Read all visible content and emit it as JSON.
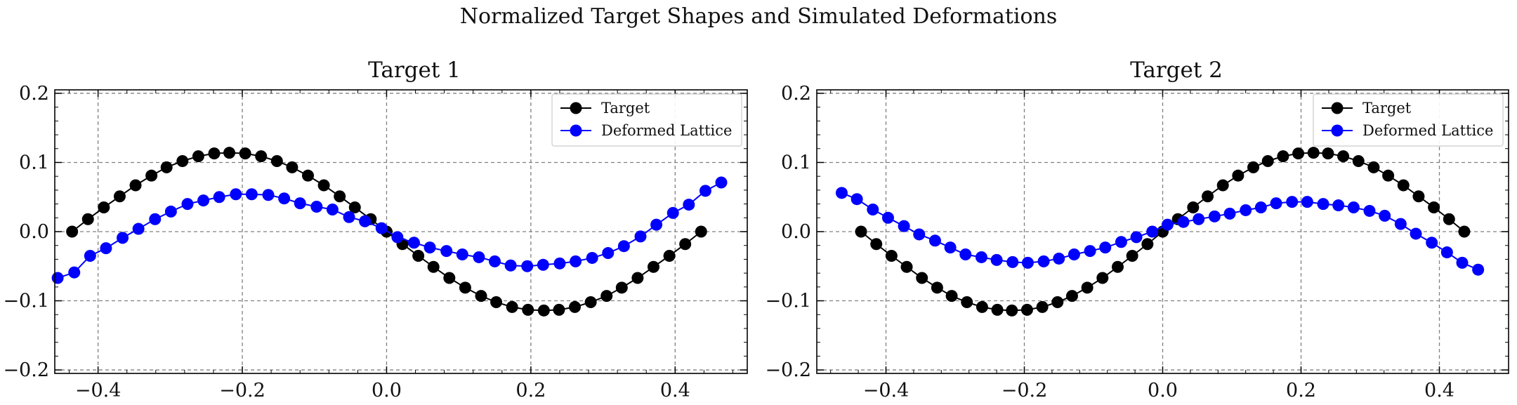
{
  "figure": {
    "suptitle": "Normalized Target Shapes and Simulated Deformations"
  },
  "colors": {
    "target": "#000000",
    "deformed": "#0000ff",
    "grid": "#808080",
    "frame": "#000000"
  },
  "chart_data": [
    {
      "type": "line",
      "title": "Target 1",
      "xlabel": "",
      "ylabel": "",
      "xlim": [
        -0.46,
        0.5
      ],
      "ylim": [
        -0.205,
        0.205
      ],
      "xticks": [
        -0.4,
        -0.2,
        0.0,
        0.2,
        0.4
      ],
      "xtick_labels": [
        "−0.4",
        "−0.2",
        "0.0",
        "0.2",
        "0.4"
      ],
      "yticks": [
        -0.2,
        -0.1,
        0.0,
        0.1,
        0.2
      ],
      "ytick_labels": [
        "−0.2",
        "−0.1",
        "0.0",
        "0.1",
        "0.2"
      ],
      "grid": true,
      "legend": "top-right",
      "series": [
        {
          "name": "Target",
          "color": "#000000",
          "marker": "circle",
          "x": [
            -0.436,
            -0.414,
            -0.392,
            -0.37,
            -0.348,
            -0.326,
            -0.305,
            -0.283,
            -0.261,
            -0.239,
            -0.218,
            -0.196,
            -0.174,
            -0.152,
            -0.131,
            -0.109,
            -0.087,
            -0.065,
            -0.044,
            -0.022,
            0.0,
            0.022,
            0.044,
            0.065,
            0.087,
            0.109,
            0.131,
            0.152,
            0.174,
            0.196,
            0.218,
            0.239,
            0.261,
            0.283,
            0.305,
            0.326,
            0.348,
            0.37,
            0.392,
            0.414,
            0.436
          ],
          "y": [
            0.0,
            0.018,
            0.035,
            0.051,
            0.067,
            0.081,
            0.093,
            0.102,
            0.109,
            0.113,
            0.114,
            0.113,
            0.109,
            0.102,
            0.093,
            0.081,
            0.067,
            0.051,
            0.035,
            0.018,
            0.0,
            -0.018,
            -0.035,
            -0.051,
            -0.067,
            -0.081,
            -0.093,
            -0.102,
            -0.109,
            -0.113,
            -0.114,
            -0.113,
            -0.109,
            -0.102,
            -0.093,
            -0.081,
            -0.067,
            -0.051,
            -0.035,
            -0.018,
            0.0
          ]
        },
        {
          "name": "Deformed Lattice",
          "color": "#0000ff",
          "marker": "circle",
          "x": [
            -0.456,
            -0.433,
            -0.411,
            -0.389,
            -0.366,
            -0.344,
            -0.321,
            -0.299,
            -0.276,
            -0.254,
            -0.232,
            -0.209,
            -0.187,
            -0.164,
            -0.142,
            -0.12,
            -0.097,
            -0.075,
            -0.052,
            -0.03,
            -0.007,
            0.015,
            0.038,
            0.06,
            0.083,
            0.105,
            0.128,
            0.15,
            0.172,
            0.195,
            0.217,
            0.24,
            0.262,
            0.285,
            0.307,
            0.329,
            0.352,
            0.374,
            0.397,
            0.419,
            0.442,
            0.464
          ],
          "y": [
            -0.067,
            -0.059,
            -0.035,
            -0.024,
            -0.009,
            0.004,
            0.018,
            0.029,
            0.04,
            0.045,
            0.05,
            0.054,
            0.054,
            0.053,
            0.048,
            0.041,
            0.036,
            0.032,
            0.021,
            0.015,
            0.005,
            -0.008,
            -0.016,
            -0.023,
            -0.028,
            -0.033,
            -0.037,
            -0.043,
            -0.049,
            -0.05,
            -0.048,
            -0.046,
            -0.043,
            -0.038,
            -0.031,
            -0.021,
            -0.007,
            0.01,
            0.027,
            0.039,
            0.059,
            0.071
          ]
        }
      ]
    },
    {
      "type": "line",
      "title": "Target 2",
      "xlabel": "",
      "ylabel": "",
      "xlim": [
        -0.5,
        0.5
      ],
      "ylim": [
        -0.205,
        0.205
      ],
      "xticks": [
        -0.4,
        -0.2,
        0.0,
        0.2,
        0.4
      ],
      "xtick_labels": [
        "−0.4",
        "−0.2",
        "0.0",
        "0.2",
        "0.4"
      ],
      "yticks": [
        -0.2,
        -0.1,
        0.0,
        0.1,
        0.2
      ],
      "ytick_labels": [
        "−0.2",
        "−0.1",
        "0.0",
        "0.1",
        "0.2"
      ],
      "grid": true,
      "legend": "top-right",
      "series": [
        {
          "name": "Target",
          "color": "#000000",
          "marker": "circle",
          "x": [
            -0.436,
            -0.414,
            -0.392,
            -0.37,
            -0.348,
            -0.326,
            -0.305,
            -0.283,
            -0.261,
            -0.239,
            -0.218,
            -0.196,
            -0.174,
            -0.152,
            -0.131,
            -0.109,
            -0.087,
            -0.065,
            -0.044,
            -0.022,
            0.0,
            0.022,
            0.044,
            0.065,
            0.087,
            0.109,
            0.131,
            0.152,
            0.174,
            0.196,
            0.218,
            0.239,
            0.261,
            0.283,
            0.305,
            0.326,
            0.348,
            0.37,
            0.392,
            0.414,
            0.436
          ],
          "y": [
            0.0,
            -0.018,
            -0.035,
            -0.051,
            -0.067,
            -0.081,
            -0.093,
            -0.102,
            -0.109,
            -0.113,
            -0.114,
            -0.113,
            -0.109,
            -0.102,
            -0.093,
            -0.081,
            -0.067,
            -0.051,
            -0.035,
            -0.018,
            0.0,
            0.018,
            0.035,
            0.051,
            0.067,
            0.081,
            0.093,
            0.102,
            0.109,
            0.113,
            0.114,
            0.113,
            0.109,
            0.102,
            0.093,
            0.081,
            0.067,
            0.051,
            0.035,
            0.018,
            0.0
          ]
        },
        {
          "name": "Deformed Lattice",
          "color": "#0000ff",
          "marker": "circle",
          "x": [
            -0.464,
            -0.442,
            -0.419,
            -0.397,
            -0.374,
            -0.352,
            -0.329,
            -0.307,
            -0.285,
            -0.262,
            -0.24,
            -0.217,
            -0.195,
            -0.172,
            -0.15,
            -0.128,
            -0.105,
            -0.083,
            -0.06,
            -0.038,
            -0.015,
            0.007,
            0.03,
            0.052,
            0.075,
            0.097,
            0.12,
            0.142,
            0.164,
            0.187,
            0.209,
            0.232,
            0.254,
            0.276,
            0.299,
            0.321,
            0.344,
            0.366,
            0.389,
            0.411,
            0.433,
            0.456
          ],
          "y": [
            0.056,
            0.047,
            0.032,
            0.02,
            0.008,
            -0.004,
            -0.013,
            -0.023,
            -0.033,
            -0.037,
            -0.041,
            -0.044,
            -0.045,
            -0.043,
            -0.039,
            -0.033,
            -0.028,
            -0.023,
            -0.015,
            -0.008,
            0.0,
            0.01,
            0.014,
            0.018,
            0.022,
            0.026,
            0.031,
            0.035,
            0.041,
            0.043,
            0.043,
            0.04,
            0.038,
            0.035,
            0.03,
            0.023,
            0.011,
            -0.003,
            -0.016,
            -0.03,
            -0.045,
            -0.055
          ]
        }
      ]
    }
  ]
}
